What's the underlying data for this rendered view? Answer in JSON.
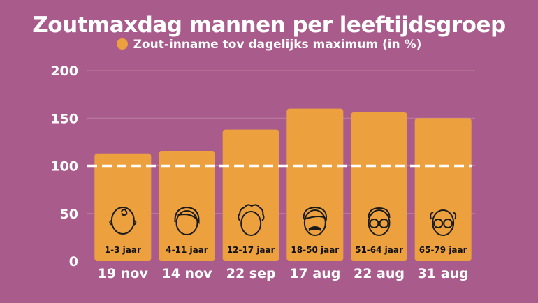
{
  "colors": {
    "background": "#A95C8C",
    "bar": "#ECA03E",
    "text": "#ffffff",
    "grid": "#C07FA5",
    "icon": "#1a1a1a"
  },
  "chart_data": {
    "type": "bar",
    "title": "Zoutmaxdag mannen per leeftijdsgroep",
    "xlabel": "",
    "ylabel": "",
    "ylim": [
      0,
      200
    ],
    "yticks": [
      0,
      50,
      100,
      150,
      200
    ],
    "grid": true,
    "legend_position": "top-center",
    "series": [
      {
        "name": "Zout-inname tov dagelijks maximum (in %)",
        "values": [
          113,
          115,
          138,
          160,
          156,
          150
        ]
      }
    ],
    "categories": [
      "19 nov",
      "14 nov",
      "22 sep",
      "17 aug",
      "22 aug",
      "31 aug"
    ],
    "bar_labels": [
      "1-3 jaar",
      "4-11 jaar",
      "12-17 jaar",
      "18-50 jaar",
      "51-64 jaar",
      "65-79 jaar"
    ],
    "bar_icons": [
      "baby-face-icon",
      "child-face-icon",
      "teen-face-icon",
      "mustache-face-icon",
      "glasses-face-icon",
      "senior-face-icon"
    ],
    "reference_line": {
      "value": 100,
      "style": "dashed"
    }
  }
}
